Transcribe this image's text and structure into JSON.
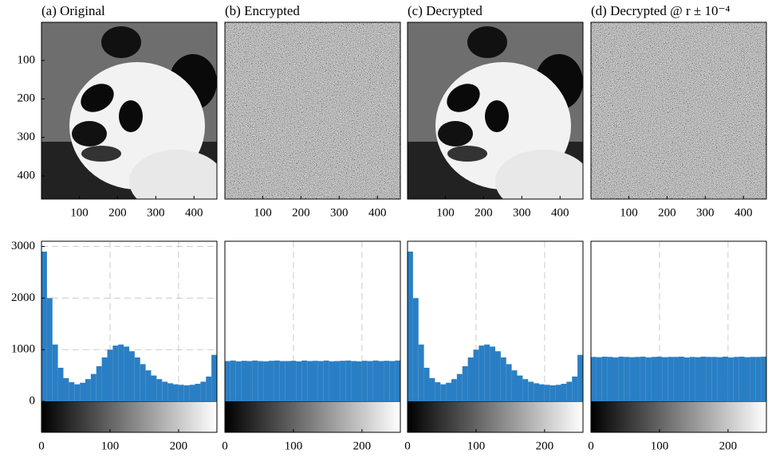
{
  "chart_data": [
    {
      "type": "image",
      "title": "(a) Original",
      "xlim": [
        1,
        460
      ],
      "ylim": [
        1,
        460
      ],
      "xticks": [
        100,
        200,
        300,
        400
      ],
      "yticks": [
        100,
        200,
        300,
        400
      ]
    },
    {
      "type": "image",
      "title": "(b) Encrypted",
      "xlim": [
        1,
        460
      ],
      "ylim": [
        1,
        460
      ],
      "xticks": [
        100,
        200,
        300,
        400
      ]
    },
    {
      "type": "image",
      "title": "(c) Decrypted",
      "xlim": [
        1,
        460
      ],
      "ylim": [
        1,
        460
      ],
      "xticks": [
        100,
        200,
        300,
        400
      ]
    },
    {
      "type": "image",
      "title": "(d) Decrypted @ r ± 10⁻⁴",
      "xlim": [
        1,
        460
      ],
      "ylim": [
        1,
        460
      ],
      "xticks": [
        100,
        200,
        300,
        400
      ]
    },
    {
      "type": "histogram",
      "color": "#2a7fc4",
      "grid": true,
      "xlim": [
        0,
        256
      ],
      "ylim": [
        -600,
        3100
      ],
      "xticks": [
        0,
        100,
        200
      ],
      "yticks": [
        0,
        1000,
        2000,
        3000
      ],
      "bins": [
        0,
        8,
        16,
        24,
        32,
        40,
        48,
        56,
        64,
        72,
        80,
        88,
        96,
        104,
        112,
        120,
        128,
        136,
        144,
        152,
        160,
        168,
        176,
        184,
        192,
        200,
        208,
        216,
        224,
        232,
        240,
        248,
        256
      ],
      "counts": [
        2900,
        2000,
        1100,
        650,
        450,
        370,
        330,
        360,
        430,
        530,
        680,
        850,
        1000,
        1080,
        1100,
        1060,
        970,
        850,
        720,
        600,
        500,
        430,
        380,
        350,
        330,
        320,
        310,
        320,
        340,
        380,
        480,
        900
      ]
    },
    {
      "type": "histogram",
      "color": "#2a7fc4",
      "grid": true,
      "xlim": [
        0,
        256
      ],
      "ylim": [
        -600,
        3100
      ],
      "xticks": [
        0,
        100,
        200
      ],
      "bins": [
        0,
        8,
        16,
        24,
        32,
        40,
        48,
        56,
        64,
        72,
        80,
        88,
        96,
        104,
        112,
        120,
        128,
        136,
        144,
        152,
        160,
        168,
        176,
        184,
        192,
        200,
        208,
        216,
        224,
        232,
        240,
        248,
        256
      ],
      "counts": [
        780,
        790,
        775,
        785,
        780,
        790,
        780,
        775,
        785,
        790,
        780,
        780,
        785,
        775,
        790,
        780,
        785,
        780,
        790,
        775,
        780,
        785,
        790,
        780,
        775,
        785,
        780,
        790,
        780,
        785,
        780,
        790
      ]
    },
    {
      "type": "histogram",
      "color": "#2a7fc4",
      "grid": true,
      "xlim": [
        0,
        256
      ],
      "ylim": [
        -600,
        3100
      ],
      "xticks": [
        0,
        100,
        200
      ],
      "bins": [
        0,
        8,
        16,
        24,
        32,
        40,
        48,
        56,
        64,
        72,
        80,
        88,
        96,
        104,
        112,
        120,
        128,
        136,
        144,
        152,
        160,
        168,
        176,
        184,
        192,
        200,
        208,
        216,
        224,
        232,
        240,
        248,
        256
      ],
      "counts": [
        2900,
        2000,
        1100,
        650,
        450,
        370,
        330,
        360,
        430,
        530,
        680,
        850,
        1000,
        1080,
        1100,
        1060,
        970,
        850,
        720,
        600,
        500,
        430,
        380,
        350,
        330,
        320,
        310,
        320,
        340,
        380,
        480,
        900
      ]
    },
    {
      "type": "histogram",
      "color": "#2a7fc4",
      "grid": true,
      "xlim": [
        0,
        256
      ],
      "ylim": [
        -600,
        3100
      ],
      "xticks": [
        0,
        100,
        200
      ],
      "bins": [
        0,
        8,
        16,
        24,
        32,
        40,
        48,
        56,
        64,
        72,
        80,
        88,
        96,
        104,
        112,
        120,
        128,
        136,
        144,
        152,
        160,
        168,
        176,
        184,
        192,
        200,
        208,
        216,
        224,
        232,
        240,
        248,
        256
      ],
      "counts": [
        860,
        855,
        865,
        860,
        850,
        865,
        860,
        855,
        860,
        865,
        850,
        860,
        865,
        855,
        860,
        860,
        865,
        850,
        860,
        855,
        865,
        860,
        860,
        855,
        865,
        850,
        860,
        865,
        855,
        860,
        860,
        865
      ]
    }
  ]
}
